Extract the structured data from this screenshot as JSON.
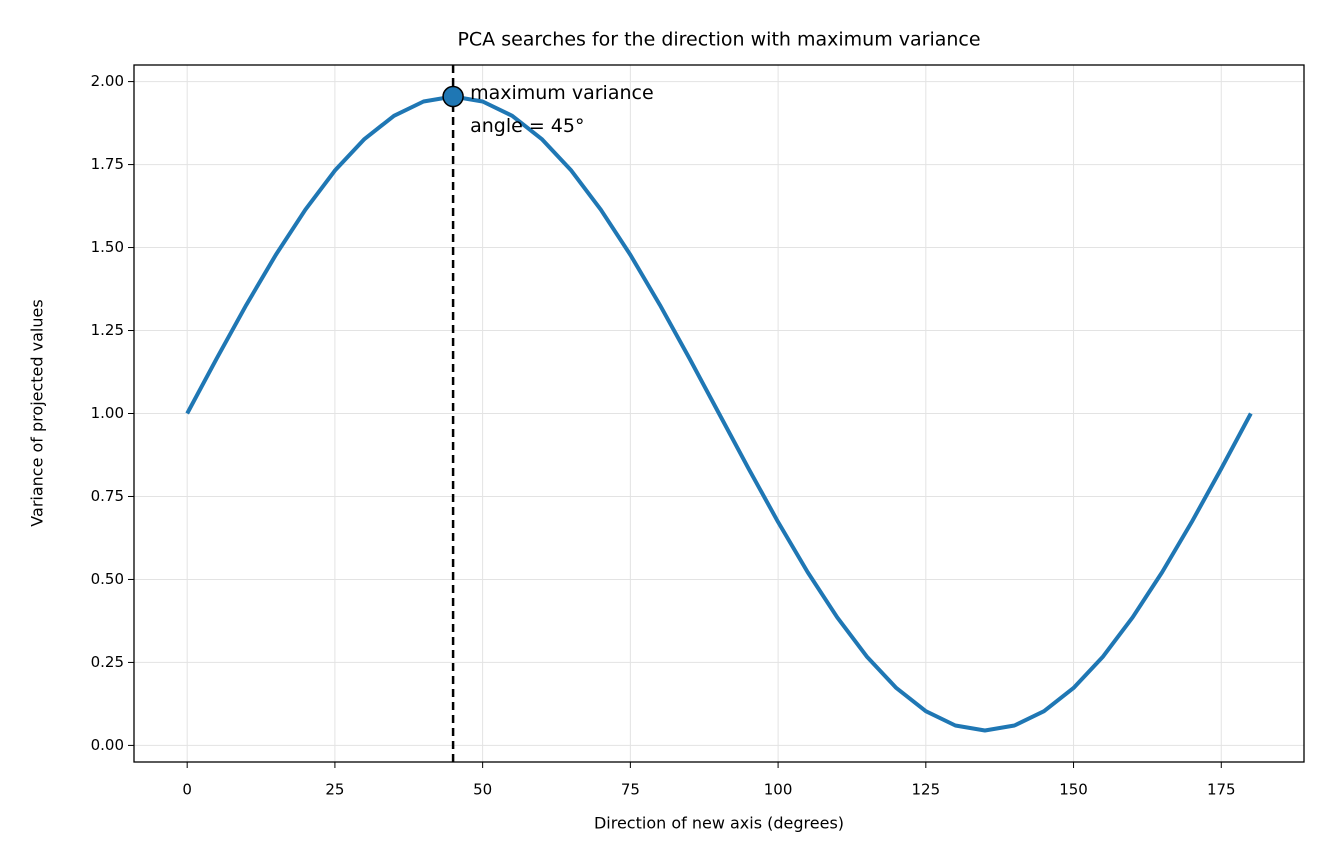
{
  "chart_data": {
    "type": "line",
    "title": "PCA searches for the direction with maximum variance",
    "x_label": "Direction of new axis (degrees)",
    "y_label": "Variance of projected values",
    "x": [
      0,
      5,
      10,
      15,
      20,
      25,
      30,
      35,
      40,
      45,
      50,
      55,
      60,
      65,
      70,
      75,
      80,
      85,
      90,
      95,
      100,
      105,
      110,
      115,
      120,
      125,
      130,
      135,
      140,
      145,
      150,
      155,
      160,
      165,
      170,
      175,
      180
    ],
    "series": [
      {
        "name": "variance",
        "color": "#1f77b4",
        "values": [
          1.0,
          1.166,
          1.327,
          1.478,
          1.614,
          1.732,
          1.827,
          1.897,
          1.94,
          1.955,
          1.94,
          1.897,
          1.827,
          1.732,
          1.614,
          1.478,
          1.327,
          1.166,
          1.0,
          0.834,
          0.673,
          0.522,
          0.386,
          0.268,
          0.173,
          0.103,
          0.06,
          0.045,
          0.06,
          0.103,
          0.173,
          0.268,
          0.386,
          0.522,
          0.673,
          0.834,
          1.0
        ]
      }
    ],
    "max_point": {
      "x": 45,
      "y": 1.955
    },
    "vline_x": 45,
    "annotation": [
      "maximum variance",
      "angle = 45°"
    ],
    "xlim": [
      -9,
      189
    ],
    "ylim": [
      -0.05,
      2.05
    ],
    "xticks": [
      0,
      25,
      50,
      75,
      100,
      125,
      150,
      175
    ],
    "yticks": [
      {
        "value": 0,
        "label": "0.00"
      },
      {
        "value": 0.25,
        "label": "0.25"
      },
      {
        "value": 0.5,
        "label": "0.50"
      },
      {
        "value": 0.75,
        "label": "0.75"
      },
      {
        "value": 1,
        "label": "1.00"
      },
      {
        "value": 1.25,
        "label": "1.25"
      },
      {
        "value": 1.5,
        "label": "1.50"
      },
      {
        "value": 1.75,
        "label": "1.75"
      },
      {
        "value": 2,
        "label": "2.00"
      }
    ],
    "grid": true
  }
}
